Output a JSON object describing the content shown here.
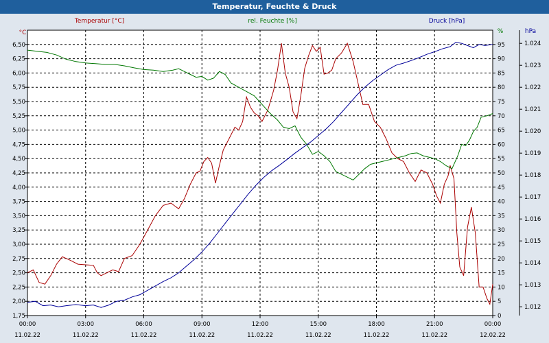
{
  "window": {
    "title": "Temperatur, Feuchte & Druck"
  },
  "chart_data": {
    "type": "line",
    "title": "Temperatur, Feuchte & Druck",
    "x_ticks": [
      {
        "time": "00:00",
        "date": "11.02.22",
        "hour": 0
      },
      {
        "time": "03:00",
        "date": "11.02.22",
        "hour": 3
      },
      {
        "time": "06:00",
        "date": "11.02.22",
        "hour": 6
      },
      {
        "time": "09:00",
        "date": "11.02.22",
        "hour": 9
      },
      {
        "time": "12:00",
        "date": "11.02.22",
        "hour": 12
      },
      {
        "time": "15:00",
        "date": "11.02.22",
        "hour": 15
      },
      {
        "time": "18:00",
        "date": "11.02.22",
        "hour": 18
      },
      {
        "time": "21:00",
        "date": "11.02.22",
        "hour": 21
      },
      {
        "time": "00:00",
        "date": "12.02.22",
        "hour": 24
      }
    ],
    "xlim": [
      0,
      24
    ],
    "axes": {
      "temperature": {
        "unit": "°C",
        "label": "Temperatur [°C]",
        "ylim": [
          1.75,
          6.75
        ],
        "ticks": [
          "1,75",
          "2,00",
          "2,25",
          "2,50",
          "2,75",
          "3,00",
          "3,25",
          "3,50",
          "3,75",
          "4,00",
          "4,25",
          "4,50",
          "4,75",
          "5,00",
          "5,25",
          "5,50",
          "5,75",
          "6,00",
          "6,25",
          "6,50"
        ]
      },
      "humidity": {
        "unit": "%",
        "label": "rel. Feuchte [%]",
        "ylim": [
          0,
          100
        ],
        "ticks": [
          "0",
          "5",
          "10",
          "15",
          "20",
          "25",
          "30",
          "35",
          "40",
          "45",
          "50",
          "55",
          "60",
          "65",
          "70",
          "75",
          "80",
          "85",
          "90",
          "95"
        ]
      },
      "pressure": {
        "unit": "hPa",
        "label": "Druck [hPa]",
        "ylim": [
          1011.6,
          1024.6
        ],
        "ticks": [
          "1.012",
          "1.013",
          "1.014",
          "1.015",
          "1.016",
          "1.017",
          "1.018",
          "1.019",
          "1.020",
          "1.021",
          "1.022",
          "1.023",
          "1.024"
        ]
      }
    },
    "series": [
      {
        "name": "Temperatur [°C]",
        "axis": "temperature",
        "color": "#aa0000",
        "points": [
          [
            0,
            2.5
          ],
          [
            0.3,
            2.55
          ],
          [
            0.6,
            2.33
          ],
          [
            0.9,
            2.3
          ],
          [
            1.2,
            2.45
          ],
          [
            1.5,
            2.65
          ],
          [
            1.8,
            2.78
          ],
          [
            2.2,
            2.72
          ],
          [
            2.6,
            2.65
          ],
          [
            3.0,
            2.64
          ],
          [
            3.4,
            2.63
          ],
          [
            3.6,
            2.5
          ],
          [
            3.8,
            2.45
          ],
          [
            4.1,
            2.5
          ],
          [
            4.4,
            2.55
          ],
          [
            4.7,
            2.52
          ],
          [
            5.0,
            2.75
          ],
          [
            5.4,
            2.8
          ],
          [
            5.8,
            3.0
          ],
          [
            6.2,
            3.25
          ],
          [
            6.6,
            3.5
          ],
          [
            7.0,
            3.68
          ],
          [
            7.4,
            3.72
          ],
          [
            7.8,
            3.62
          ],
          [
            8.1,
            3.8
          ],
          [
            8.4,
            4.05
          ],
          [
            8.7,
            4.25
          ],
          [
            8.9,
            4.28
          ],
          [
            9.1,
            4.45
          ],
          [
            9.3,
            4.52
          ],
          [
            9.5,
            4.42
          ],
          [
            9.7,
            4.07
          ],
          [
            9.9,
            4.38
          ],
          [
            10.1,
            4.65
          ],
          [
            10.4,
            4.85
          ],
          [
            10.7,
            5.05
          ],
          [
            10.9,
            5.0
          ],
          [
            11.1,
            5.15
          ],
          [
            11.3,
            5.58
          ],
          [
            11.5,
            5.4
          ],
          [
            11.7,
            5.3
          ],
          [
            11.9,
            5.25
          ],
          [
            12.1,
            5.15
          ],
          [
            12.4,
            5.35
          ],
          [
            12.7,
            5.7
          ],
          [
            12.9,
            6.05
          ],
          [
            13.1,
            6.52
          ],
          [
            13.3,
            6.0
          ],
          [
            13.5,
            5.75
          ],
          [
            13.7,
            5.32
          ],
          [
            13.9,
            5.2
          ],
          [
            14.1,
            5.6
          ],
          [
            14.3,
            6.08
          ],
          [
            14.5,
            6.3
          ],
          [
            14.7,
            6.48
          ],
          [
            14.9,
            6.38
          ],
          [
            15.1,
            6.45
          ],
          [
            15.3,
            5.98
          ],
          [
            15.5,
            6.0
          ],
          [
            15.7,
            6.05
          ],
          [
            15.9,
            6.25
          ],
          [
            16.2,
            6.35
          ],
          [
            16.5,
            6.52
          ],
          [
            16.8,
            6.2
          ],
          [
            17.1,
            5.75
          ],
          [
            17.3,
            5.45
          ],
          [
            17.6,
            5.45
          ],
          [
            17.9,
            5.15
          ],
          [
            18.2,
            5.05
          ],
          [
            18.5,
            4.85
          ],
          [
            18.8,
            4.6
          ],
          [
            19.1,
            4.5
          ],
          [
            19.4,
            4.45
          ],
          [
            19.7,
            4.25
          ],
          [
            20.0,
            4.1
          ],
          [
            20.3,
            4.3
          ],
          [
            20.6,
            4.25
          ],
          [
            20.9,
            4.05
          ],
          [
            21.1,
            3.85
          ],
          [
            21.3,
            3.72
          ],
          [
            21.5,
            4.05
          ],
          [
            21.7,
            4.2
          ],
          [
            21.8,
            4.38
          ],
          [
            22.0,
            4.15
          ],
          [
            22.15,
            3.2
          ],
          [
            22.3,
            2.6
          ],
          [
            22.5,
            2.45
          ],
          [
            22.7,
            3.3
          ],
          [
            22.9,
            3.65
          ],
          [
            23.1,
            3.2
          ],
          [
            23.3,
            2.25
          ],
          [
            23.5,
            2.25
          ],
          [
            23.7,
            2.05
          ],
          [
            23.85,
            1.95
          ],
          [
            24.0,
            2.3
          ]
        ]
      },
      {
        "name": "rel. Feuchte [%]",
        "axis": "humidity",
        "color": "#007700",
        "points": [
          [
            0,
            93.0
          ],
          [
            0.5,
            92.6
          ],
          [
            1.0,
            92.2
          ],
          [
            1.5,
            91.3
          ],
          [
            2.0,
            89.8
          ],
          [
            2.5,
            89.0
          ],
          [
            3.0,
            88.5
          ],
          [
            3.5,
            88.3
          ],
          [
            4.0,
            88.0
          ],
          [
            4.5,
            88.0
          ],
          [
            5.0,
            87.5
          ],
          [
            5.5,
            86.8
          ],
          [
            6.0,
            86.2
          ],
          [
            6.5,
            86.0
          ],
          [
            7.0,
            85.5
          ],
          [
            7.5,
            86.0
          ],
          [
            7.8,
            86.5
          ],
          [
            8.1,
            85.5
          ],
          [
            8.4,
            84.5
          ],
          [
            8.7,
            83.5
          ],
          [
            9.0,
            83.8
          ],
          [
            9.3,
            82.5
          ],
          [
            9.6,
            83.2
          ],
          [
            9.9,
            85.5
          ],
          [
            10.2,
            84.5
          ],
          [
            10.5,
            81.5
          ],
          [
            10.9,
            80.0
          ],
          [
            11.3,
            78.5
          ],
          [
            11.7,
            77.0
          ],
          [
            12.1,
            74.0
          ],
          [
            12.5,
            71.0
          ],
          [
            12.9,
            68.5
          ],
          [
            13.2,
            66.0
          ],
          [
            13.5,
            65.5
          ],
          [
            13.8,
            66.5
          ],
          [
            14.1,
            62.5
          ],
          [
            14.4,
            60.0
          ],
          [
            14.7,
            56.5
          ],
          [
            15.0,
            57.5
          ],
          [
            15.3,
            56.0
          ],
          [
            15.6,
            54.0
          ],
          [
            15.9,
            50.5
          ],
          [
            16.2,
            49.5
          ],
          [
            16.5,
            48.5
          ],
          [
            16.8,
            47.5
          ],
          [
            17.1,
            49.5
          ],
          [
            17.4,
            51.5
          ],
          [
            17.7,
            53.0
          ],
          [
            18.0,
            53.5
          ],
          [
            18.3,
            54.0
          ],
          [
            18.6,
            54.5
          ],
          [
            18.9,
            55.0
          ],
          [
            19.2,
            55.5
          ],
          [
            19.5,
            56.0
          ],
          [
            19.8,
            56.8
          ],
          [
            20.1,
            57.0
          ],
          [
            20.4,
            56.0
          ],
          [
            20.7,
            55.5
          ],
          [
            21.0,
            55.0
          ],
          [
            21.3,
            54.0
          ],
          [
            21.6,
            52.5
          ],
          [
            21.9,
            51.5
          ],
          [
            22.2,
            56.0
          ],
          [
            22.4,
            60.0
          ],
          [
            22.6,
            59.5
          ],
          [
            22.8,
            61.5
          ],
          [
            23.0,
            64.5
          ],
          [
            23.2,
            66.0
          ],
          [
            23.4,
            69.5
          ],
          [
            23.7,
            70.0
          ],
          [
            24.0,
            70.8
          ]
        ]
      },
      {
        "name": "Druck [hPa]",
        "axis": "pressure",
        "color": "#000099",
        "points": [
          [
            0,
            1012.2
          ],
          [
            0.4,
            1012.25
          ],
          [
            0.8,
            1012.05
          ],
          [
            1.2,
            1012.08
          ],
          [
            1.6,
            1012.0
          ],
          [
            2.0,
            1012.05
          ],
          [
            2.5,
            1012.1
          ],
          [
            3.0,
            1012.05
          ],
          [
            3.4,
            1012.08
          ],
          [
            3.8,
            1011.97
          ],
          [
            4.2,
            1012.08
          ],
          [
            4.6,
            1012.25
          ],
          [
            5.0,
            1012.3
          ],
          [
            5.4,
            1012.45
          ],
          [
            5.8,
            1012.55
          ],
          [
            6.2,
            1012.75
          ],
          [
            6.6,
            1012.95
          ],
          [
            7.0,
            1013.15
          ],
          [
            7.4,
            1013.32
          ],
          [
            7.8,
            1013.55
          ],
          [
            8.2,
            1013.85
          ],
          [
            8.6,
            1014.15
          ],
          [
            9.0,
            1014.5
          ],
          [
            9.4,
            1014.9
          ],
          [
            9.8,
            1015.35
          ],
          [
            10.2,
            1015.8
          ],
          [
            10.6,
            1016.25
          ],
          [
            11.0,
            1016.7
          ],
          [
            11.4,
            1017.15
          ],
          [
            11.8,
            1017.55
          ],
          [
            12.2,
            1017.9
          ],
          [
            12.6,
            1018.2
          ],
          [
            13.0,
            1018.45
          ],
          [
            13.4,
            1018.72
          ],
          [
            13.8,
            1019.0
          ],
          [
            14.2,
            1019.25
          ],
          [
            14.6,
            1019.5
          ],
          [
            15.0,
            1019.8
          ],
          [
            15.4,
            1020.1
          ],
          [
            15.8,
            1020.45
          ],
          [
            16.2,
            1020.85
          ],
          [
            16.6,
            1021.25
          ],
          [
            17.0,
            1021.65
          ],
          [
            17.4,
            1022.0
          ],
          [
            17.8,
            1022.3
          ],
          [
            18.2,
            1022.55
          ],
          [
            18.6,
            1022.8
          ],
          [
            19.0,
            1023.0
          ],
          [
            19.4,
            1023.1
          ],
          [
            19.8,
            1023.22
          ],
          [
            20.2,
            1023.35
          ],
          [
            20.6,
            1023.5
          ],
          [
            21.0,
            1023.62
          ],
          [
            21.4,
            1023.75
          ],
          [
            21.8,
            1023.85
          ],
          [
            22.1,
            1024.05
          ],
          [
            22.4,
            1024.0
          ],
          [
            22.7,
            1023.9
          ],
          [
            23.0,
            1023.8
          ],
          [
            23.3,
            1023.95
          ],
          [
            23.6,
            1023.9
          ],
          [
            24.0,
            1023.95
          ]
        ]
      }
    ]
  }
}
